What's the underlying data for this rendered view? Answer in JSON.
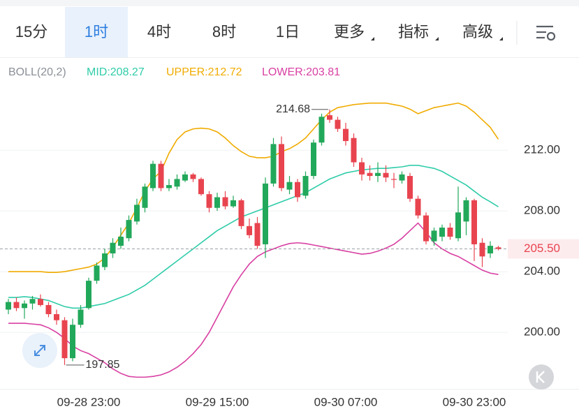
{
  "tabs": [
    {
      "label": "15分"
    },
    {
      "label": "1时"
    },
    {
      "label": "4时"
    },
    {
      "label": "8时"
    },
    {
      "label": "1日"
    },
    {
      "label": "更多",
      "dropdown": true
    },
    {
      "label": "指标",
      "dropdown": true
    },
    {
      "label": "高级",
      "dropdown": true
    }
  ],
  "active_tab": 1,
  "chart_data": {
    "type": "candlestick",
    "indicator": "BOLL(20,2)",
    "categories": [
      null,
      null,
      null,
      null,
      null,
      null,
      null,
      null,
      null,
      null,
      "09-28 23:00",
      null,
      null,
      null,
      null,
      null,
      null,
      null,
      null,
      null,
      null,
      null,
      null,
      null,
      null,
      null,
      "09-29 15:00",
      null,
      null,
      null,
      null,
      null,
      null,
      null,
      null,
      null,
      null,
      null,
      null,
      null,
      null,
      null,
      "09-30 07:00",
      null,
      null,
      null,
      null,
      null,
      null,
      null,
      null,
      null,
      null,
      null,
      null,
      null,
      null,
      null,
      "09-30 23:00",
      null,
      null,
      null
    ],
    "open": [
      201.5,
      202.0,
      201.6,
      201.9,
      202.2,
      201.8,
      201.2,
      200.8,
      198.3,
      200.5,
      201.6,
      203.4,
      204.3,
      205.2,
      205.7,
      206.2,
      207.3,
      208.2,
      209.5,
      211.1,
      209.5,
      209.6,
      210.0,
      210.4,
      210.1,
      209.1,
      208.2,
      208.9,
      208.3,
      208.7,
      207.0,
      207.2,
      205.8,
      209.8,
      212.4,
      209.4,
      209.9,
      209.0,
      210.3,
      212.5,
      214.3,
      214.0,
      213.4,
      212.8,
      211.2,
      210.5,
      210.3,
      210.5,
      210.1,
      210.0,
      210.3,
      208.8,
      207.7,
      206.0,
      206.3,
      206.9,
      206.2,
      207.3,
      208.7,
      205.9,
      205.2,
      205.6
    ],
    "high": [
      202.2,
      202.3,
      202.1,
      202.4,
      202.5,
      202.0,
      201.5,
      201.0,
      200.9,
      201.8,
      203.6,
      204.6,
      205.5,
      206.2,
      206.9,
      207.7,
      208.8,
      209.8,
      211.3,
      211.3,
      210.1,
      210.4,
      210.6,
      210.5,
      210.2,
      209.3,
      209.2,
      209.3,
      209.0,
      208.8,
      207.5,
      207.6,
      210.2,
      212.8,
      212.9,
      210.3,
      210.1,
      210.6,
      212.7,
      214.4,
      214.68,
      214.2,
      213.8,
      213.1,
      211.5,
      211.0,
      211.2,
      211.0,
      210.5,
      210.6,
      210.5,
      209.0,
      207.9,
      206.9,
      207.1,
      207.2,
      209.6,
      208.9,
      208.8,
      206.2,
      206.0,
      205.7
    ],
    "low": [
      201.2,
      201.4,
      200.9,
      201.5,
      201.7,
      201.0,
      200.5,
      197.85,
      198.1,
      200.3,
      201.5,
      203.2,
      204.1,
      204.9,
      205.5,
      206.0,
      207.1,
      207.9,
      209.3,
      209.3,
      209.3,
      209.4,
      209.9,
      209.9,
      209.0,
      207.9,
      208.0,
      208.1,
      208.2,
      206.8,
      206.2,
      205.5,
      204.9,
      209.6,
      209.3,
      209.1,
      208.6,
      208.8,
      210.1,
      212.3,
      213.8,
      213.2,
      212.3,
      210.9,
      210.0,
      210.0,
      209.9,
      209.9,
      209.5,
      209.8,
      208.6,
      207.5,
      205.8,
      205.7,
      206.0,
      206.1,
      206.0,
      206.4,
      204.7,
      204.3,
      204.9,
      205.4
    ],
    "close": [
      202.0,
      201.6,
      201.9,
      202.2,
      201.8,
      201.2,
      200.8,
      198.3,
      200.5,
      201.5,
      203.4,
      204.4,
      205.2,
      205.9,
      206.3,
      207.4,
      208.4,
      209.6,
      211.1,
      209.5,
      209.7,
      210.1,
      210.4,
      210.1,
      209.1,
      208.2,
      208.9,
      208.3,
      208.7,
      207.0,
      206.4,
      205.7,
      209.8,
      212.4,
      209.5,
      209.9,
      208.9,
      210.3,
      212.5,
      214.2,
      214.0,
      213.4,
      212.6,
      211.2,
      210.4,
      210.3,
      210.5,
      210.2,
      210.05,
      210.4,
      208.8,
      207.7,
      206.0,
      206.7,
      206.9,
      206.3,
      207.9,
      208.7,
      205.8,
      205.0,
      205.7,
      205.5
    ],
    "up_color": "#22a85a",
    "down_color": "#e8444f",
    "series": [
      {
        "label": "MID:208.27",
        "color": "#2fcca9",
        "values": [
          202.3,
          202.3,
          202.35,
          202.3,
          202.2,
          202.1,
          201.9,
          201.7,
          201.6,
          201.6,
          201.7,
          201.8,
          201.9,
          202.1,
          202.3,
          202.5,
          202.8,
          203.1,
          203.5,
          203.9,
          204.3,
          204.7,
          205.1,
          205.5,
          205.9,
          206.3,
          206.7,
          207.0,
          207.3,
          207.6,
          207.8,
          208.0,
          208.2,
          208.4,
          208.6,
          208.8,
          209.0,
          209.2,
          209.5,
          209.8,
          210.1,
          210.3,
          210.5,
          210.6,
          210.7,
          210.75,
          210.8,
          210.8,
          210.85,
          210.9,
          211.0,
          211.0,
          210.9,
          210.8,
          210.6,
          210.3,
          210.0,
          209.7,
          209.3,
          208.9,
          208.6,
          208.27
        ]
      },
      {
        "label": "UPPER:212.72",
        "color": "#f0ab00",
        "values": [
          204.0,
          204.0,
          204.0,
          204.0,
          204.0,
          203.95,
          203.95,
          204.0,
          204.1,
          204.2,
          204.3,
          204.5,
          204.9,
          205.6,
          206.4,
          207.2,
          208.2,
          209.3,
          210.1,
          210.6,
          211.8,
          212.7,
          213.2,
          213.4,
          213.45,
          213.4,
          213.2,
          212.8,
          212.3,
          211.9,
          211.6,
          211.5,
          211.5,
          211.6,
          211.9,
          212.1,
          212.4,
          212.8,
          213.4,
          214.0,
          214.5,
          214.8,
          214.9,
          215.0,
          215.05,
          215.1,
          215.1,
          215.1,
          215.0,
          214.9,
          214.7,
          214.4,
          214.6,
          214.8,
          214.9,
          215.0,
          215.1,
          214.9,
          214.5,
          214.0,
          213.5,
          212.72
        ]
      },
      {
        "label": "LOWER:203.81",
        "color": "#d83fa2",
        "values": [
          200.6,
          200.6,
          200.6,
          200.55,
          200.5,
          200.3,
          200.0,
          199.6,
          199.1,
          198.8,
          198.6,
          198.3,
          198.0,
          197.6,
          197.3,
          197.1,
          197.05,
          197.05,
          197.1,
          197.2,
          197.4,
          197.7,
          198.1,
          198.6,
          199.2,
          200.0,
          201.0,
          202.0,
          203.0,
          203.8,
          204.5,
          205.0,
          205.3,
          205.5,
          205.7,
          205.85,
          205.9,
          205.85,
          205.75,
          205.65,
          205.55,
          205.45,
          205.35,
          205.25,
          205.15,
          205.2,
          205.35,
          205.55,
          205.8,
          206.2,
          206.7,
          207.2,
          206.6,
          205.9,
          205.5,
          205.2,
          205.0,
          204.7,
          204.4,
          204.1,
          203.9,
          203.81
        ]
      }
    ],
    "ylim": [
      196.28,
      217.98
    ],
    "yticks": [
      {
        "value": 200,
        "label": "200.00"
      },
      {
        "value": 204,
        "label": "204.00"
      },
      {
        "value": 208,
        "label": "208.00"
      },
      {
        "value": 212,
        "label": "212.00"
      }
    ],
    "grid": true,
    "current_price": {
      "value": 205.5,
      "label": "205.50"
    },
    "extreme_high": 40,
    "extreme_low": 7
  }
}
